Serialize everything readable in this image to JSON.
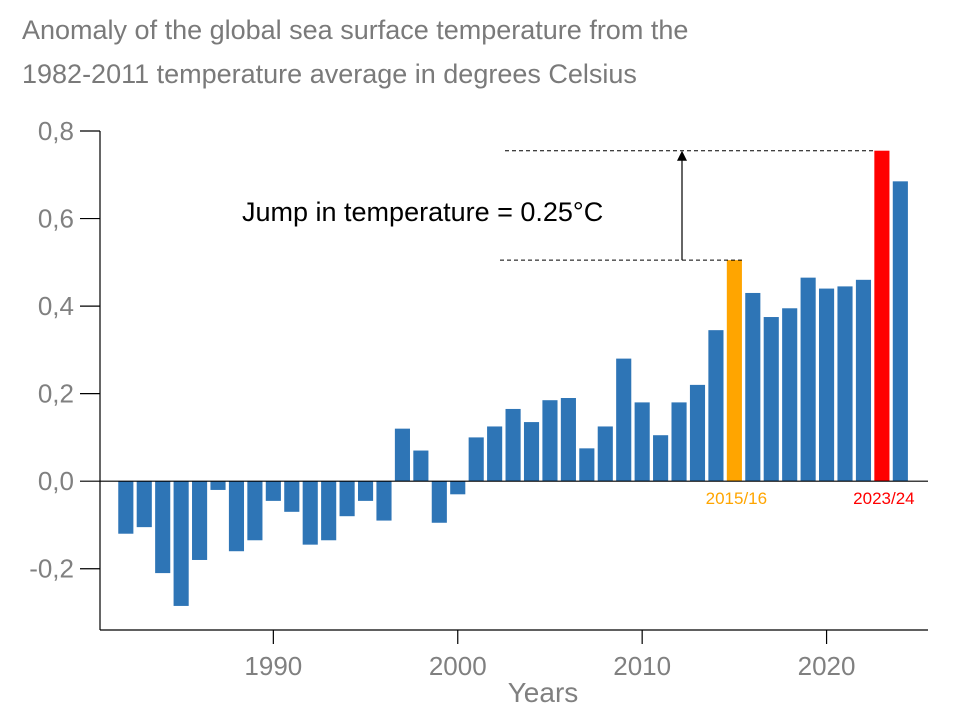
{
  "chart_data": {
    "type": "bar",
    "title_lines": [
      "Anomaly of the global sea surface temperature from the",
      "1982-2011 temperature average in degrees Celsius"
    ],
    "xlabel": "Years",
    "ylabel": "",
    "ylim": [
      -0.34,
      0.8
    ],
    "xlim": [
      1980.6,
      2025.5
    ],
    "yticks": [
      0.8,
      0.6,
      0.4,
      0.2,
      0.0,
      -0.2
    ],
    "ytick_labels": [
      "0,8",
      "0,6",
      "0,4",
      "0,2",
      "0,0",
      "-0,2"
    ],
    "xticks": [
      1990,
      2000,
      2010,
      2020
    ],
    "xtick_labels": [
      "1990",
      "2000",
      "2010",
      "2020"
    ],
    "grid": false,
    "years": [
      1982,
      1983,
      1984,
      1985,
      1986,
      1987,
      1988,
      1989,
      1990,
      1991,
      1992,
      1993,
      1994,
      1995,
      1996,
      1997,
      1998,
      1999,
      2000,
      2001,
      2002,
      2003,
      2004,
      2005,
      2006,
      2007,
      2008,
      2009,
      2010,
      2011,
      2012,
      2013,
      2014,
      2015,
      2016,
      2017,
      2018,
      2019,
      2020,
      2021,
      2022,
      2023,
      2024
    ],
    "values": [
      -0.12,
      -0.105,
      -0.21,
      -0.285,
      -0.18,
      -0.02,
      -0.16,
      -0.135,
      -0.045,
      -0.07,
      -0.145,
      -0.135,
      -0.08,
      -0.045,
      -0.09,
      0.12,
      0.07,
      -0.095,
      -0.03,
      0.1,
      0.125,
      0.165,
      0.135,
      0.185,
      0.19,
      0.075,
      0.125,
      0.28,
      0.18,
      0.105,
      0.18,
      0.22,
      0.345,
      0.505,
      0.43,
      0.375,
      0.395,
      0.465,
      0.44,
      0.445,
      0.46,
      0.755,
      0.685
    ],
    "bar_color": "#2e75b6",
    "highlights": [
      {
        "year": 2015,
        "label": "2015/16",
        "color": "#ffa500"
      },
      {
        "year": 2023,
        "label": "2023/24",
        "color": "#ff0000"
      }
    ],
    "annotation": {
      "text": "Jump in temperature = 0.25°C",
      "from": 0.505,
      "to": 0.755
    }
  }
}
